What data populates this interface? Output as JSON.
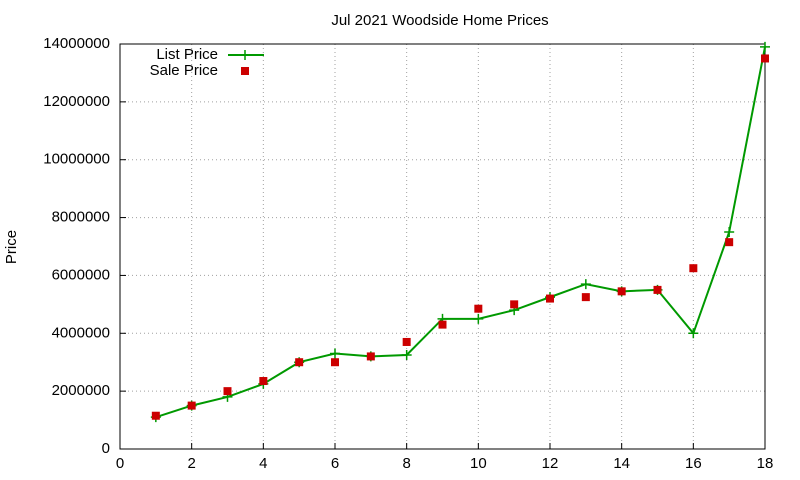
{
  "chart_data": {
    "type": "line",
    "title": "Jul 2021 Woodside Home Prices",
    "y_label": "Price",
    "x": [
      1,
      2,
      3,
      4,
      5,
      6,
      7,
      8,
      9,
      10,
      11,
      12,
      13,
      14,
      15,
      16,
      17,
      18
    ],
    "series": [
      {
        "name": "List Price",
        "color": "#009900",
        "style": "linespoints",
        "values": [
          1100000,
          1500000,
          1800000,
          2250000,
          3000000,
          3300000,
          3200000,
          3250000,
          4500000,
          4500000,
          4800000,
          5250000,
          5700000,
          5450000,
          5500000,
          4000000,
          7500000,
          13900000
        ]
      },
      {
        "name": "Sale Price",
        "color": "#cc0000",
        "style": "points",
        "values": [
          1150000,
          1500000,
          2000000,
          2350000,
          3000000,
          3000000,
          3200000,
          3700000,
          4300000,
          4850000,
          5000000,
          5200000,
          5250000,
          5450000,
          5500000,
          6250000,
          7150000,
          13500000
        ]
      }
    ],
    "xlim": [
      0,
      18
    ],
    "xticks": [
      0,
      2,
      4,
      6,
      8,
      10,
      12,
      14,
      16,
      18
    ],
    "ylim": [
      0,
      14000000
    ],
    "yticks": [
      0,
      2000000,
      4000000,
      6000000,
      8000000,
      10000000,
      12000000,
      14000000
    ],
    "grid": true,
    "legend": "top-left"
  }
}
